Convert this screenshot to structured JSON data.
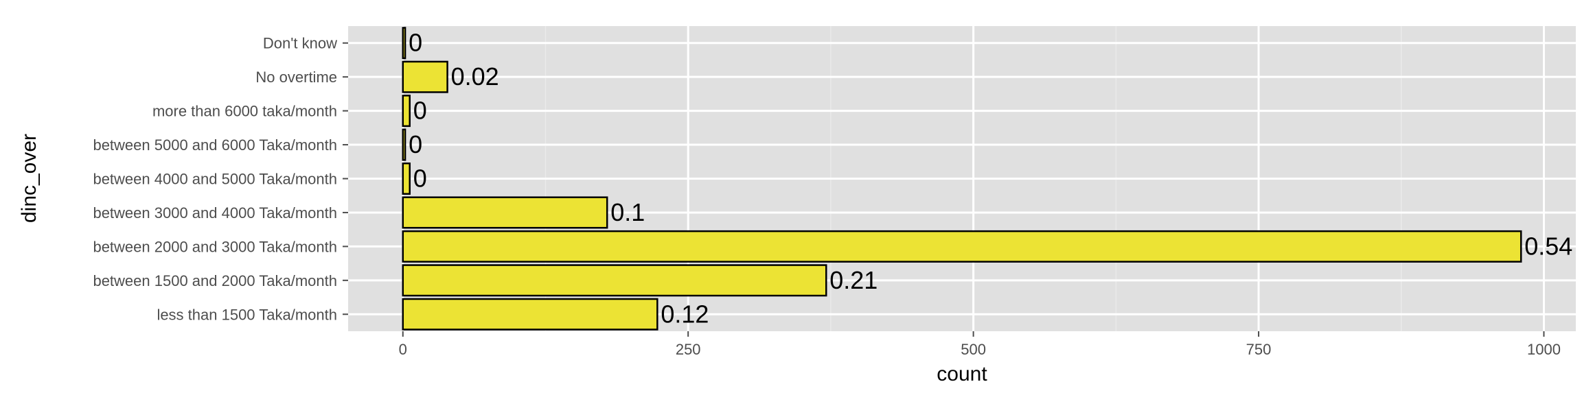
{
  "chart_data": {
    "type": "bar",
    "orientation": "horizontal",
    "xlabel": "count",
    "ylabel": "dinc_over",
    "categories": [
      "less than 1500 Taka/month",
      "between 1500 and 2000 Taka/month",
      "between 2000 and 3000 Taka/month",
      "between 3000 and 4000 Taka/month",
      "between 4000 and 5000 Taka/month",
      "between 5000 and 6000 Taka/month",
      "more than 6000 taka/month",
      "No overtime",
      "Don't know"
    ],
    "values": [
      223,
      371,
      980,
      179,
      6,
      2,
      6,
      39,
      2
    ],
    "data_labels": [
      "0.12",
      "0.21",
      "0.54",
      "0.1",
      "0",
      "0",
      "0",
      "0.02",
      "0"
    ],
    "xlim": [
      -48,
      1028
    ],
    "xticks": [
      0,
      250,
      500,
      750,
      1000
    ],
    "xtick_labels": [
      "0",
      "250",
      "500",
      "750",
      "1000"
    ],
    "grid": true,
    "legend": "none",
    "colors": {
      "panel": "#e0e0e0",
      "grid_major": "#ffffff",
      "grid_minor": "#eaeaea",
      "bar_fill": "#ece334",
      "bar_stroke": "#000000"
    }
  }
}
